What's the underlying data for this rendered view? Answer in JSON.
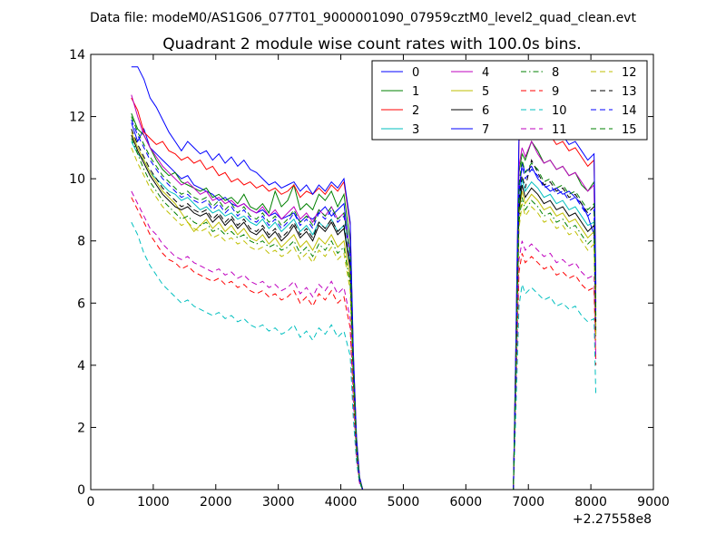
{
  "chart_data": {
    "type": "line",
    "suptitle": "Data file: modeM0/AS1G06_077T01_9000001090_07959cztM0_level2_quad_clean.evt",
    "title": "Quadrant 2 module wise count rates with 100.0s bins.",
    "xlabel": "",
    "ylabel": "",
    "x_offset_label": "+2.27558e8",
    "xlim": [
      0,
      9000
    ],
    "ylim": [
      0,
      14
    ],
    "xticks": [
      0,
      1000,
      2000,
      3000,
      4000,
      5000,
      6000,
      7000,
      8000,
      9000
    ],
    "yticks": [
      0,
      2,
      4,
      6,
      8,
      10,
      12,
      14
    ],
    "grid": false,
    "legend_position": "top-right",
    "legend_columns": 4,
    "x": [
      650,
      750,
      850,
      950,
      1050,
      1150,
      1250,
      1350,
      1450,
      1550,
      1650,
      1750,
      1850,
      1950,
      2050,
      2150,
      2250,
      2350,
      2450,
      2550,
      2650,
      2750,
      2850,
      2950,
      3050,
      3150,
      3250,
      3350,
      3450,
      3550,
      3650,
      3750,
      3850,
      3950,
      4050,
      4150,
      4200,
      4250,
      4300,
      4350,
      4400,
      4500,
      5000,
      5500,
      6000,
      6500,
      6700,
      6760,
      6800,
      6850,
      6900,
      6950,
      7050,
      7150,
      7250,
      7350,
      7450,
      7550,
      7650,
      7750,
      7850,
      7950,
      8050,
      8080
    ],
    "series": [
      {
        "name": "0",
        "color": "#0000ff",
        "dash": "solid",
        "values": [
          11.8,
          11.2,
          11.6,
          11.0,
          10.8,
          10.6,
          10.4,
          10.2,
          10.0,
          10.1,
          9.8,
          9.7,
          9.6,
          9.5,
          9.3,
          9.4,
          9.2,
          9.1,
          9.2,
          9.0,
          8.9,
          9.0,
          8.8,
          8.9,
          8.7,
          8.8,
          8.9,
          8.6,
          8.8,
          8.7,
          8.9,
          9.1,
          8.8,
          9.0,
          9.2,
          7.5,
          4.0,
          1.5,
          0.3,
          0.0,
          0.0,
          0.0,
          0.0,
          0.0,
          0.0,
          0.0,
          0.0,
          0.0,
          4.0,
          9.5,
          10.5,
          10.2,
          10.4,
          10.0,
          9.8,
          9.6,
          9.7,
          9.5,
          9.6,
          9.4,
          9.2,
          8.8,
          8.2,
          5.0
        ]
      },
      {
        "name": "1",
        "color": "#008000",
        "dash": "solid",
        "values": [
          12.1,
          11.6,
          11.4,
          11.0,
          10.6,
          10.3,
          10.1,
          10.2,
          9.9,
          9.8,
          9.7,
          9.6,
          9.7,
          9.4,
          9.5,
          9.3,
          9.4,
          9.2,
          9.5,
          9.1,
          9.0,
          9.2,
          8.9,
          9.6,
          9.1,
          9.3,
          9.8,
          9.0,
          9.2,
          9.0,
          9.5,
          9.3,
          9.6,
          9.1,
          9.5,
          8.0,
          4.2,
          1.6,
          0.3,
          0.0,
          0.0,
          0.0,
          0.0,
          0.0,
          0.0,
          0.0,
          0.0,
          0.0,
          4.2,
          10.2,
          10.8,
          10.6,
          11.2,
          10.9,
          10.5,
          10.6,
          10.3,
          10.4,
          10.1,
          10.2,
          9.8,
          9.6,
          9.9,
          6.0
        ]
      },
      {
        "name": "2",
        "color": "#ff0000",
        "dash": "solid",
        "values": [
          12.6,
          12.2,
          11.5,
          11.3,
          11.1,
          11.2,
          10.9,
          10.8,
          10.6,
          10.7,
          10.5,
          10.6,
          10.3,
          10.4,
          10.1,
          10.2,
          9.9,
          10.0,
          9.8,
          9.9,
          9.7,
          9.8,
          9.6,
          9.7,
          9.5,
          9.6,
          9.8,
          9.4,
          9.6,
          9.5,
          9.7,
          9.5,
          9.8,
          9.6,
          9.9,
          8.5,
          4.4,
          1.7,
          0.4,
          0.0,
          0.0,
          0.0,
          0.0,
          0.0,
          0.0,
          0.0,
          0.0,
          0.0,
          4.5,
          11.2,
          11.8,
          11.4,
          11.9,
          11.6,
          11.3,
          11.4,
          11.1,
          11.2,
          10.9,
          11.0,
          10.7,
          10.4,
          10.6,
          6.5
        ]
      },
      {
        "name": "3",
        "color": "#00bfbf",
        "dash": "solid",
        "values": [
          11.2,
          10.8,
          10.6,
          10.2,
          10.0,
          9.8,
          9.6,
          9.5,
          9.3,
          9.4,
          9.2,
          9.0,
          9.1,
          8.9,
          9.0,
          8.8,
          8.9,
          8.7,
          8.8,
          8.6,
          8.5,
          8.7,
          8.4,
          8.6,
          8.3,
          8.5,
          8.7,
          8.3,
          8.5,
          8.2,
          8.6,
          8.4,
          8.7,
          8.3,
          8.5,
          7.2,
          3.8,
          1.4,
          0.3,
          0.0,
          0.0,
          0.0,
          0.0,
          0.0,
          0.0,
          0.0,
          0.0,
          0.0,
          3.8,
          9.2,
          10.0,
          9.6,
          9.9,
          9.7,
          9.4,
          9.5,
          9.2,
          9.3,
          9.0,
          9.1,
          8.8,
          8.5,
          8.6,
          5.2
        ]
      },
      {
        "name": "4",
        "color": "#bf00bf",
        "dash": "solid",
        "values": [
          12.7,
          12.0,
          11.4,
          11.0,
          10.7,
          10.4,
          10.2,
          10.0,
          9.8,
          9.9,
          9.7,
          9.5,
          9.6,
          9.3,
          9.4,
          9.2,
          9.3,
          9.1,
          9.2,
          9.0,
          8.9,
          9.1,
          8.8,
          9.0,
          8.7,
          8.9,
          9.1,
          8.7,
          8.9,
          8.6,
          9.0,
          8.8,
          9.1,
          8.7,
          8.9,
          7.6,
          4.0,
          1.5,
          0.3,
          0.0,
          0.0,
          0.0,
          0.0,
          0.0,
          0.0,
          0.0,
          0.0,
          0.0,
          4.2,
          10.4,
          11.0,
          10.7,
          11.2,
          10.8,
          10.5,
          10.6,
          10.3,
          10.4,
          10.1,
          10.2,
          9.9,
          9.6,
          9.8,
          5.8
        ]
      },
      {
        "name": "5",
        "color": "#bfbf00",
        "dash": "solid",
        "values": [
          11.5,
          11.0,
          10.6,
          10.2,
          9.9,
          9.6,
          9.4,
          9.2,
          8.9,
          8.6,
          8.3,
          8.5,
          8.7,
          8.4,
          8.6,
          8.3,
          8.5,
          8.2,
          8.4,
          8.1,
          8.0,
          8.2,
          7.9,
          8.1,
          7.8,
          8.0,
          8.2,
          7.8,
          8.0,
          7.7,
          8.1,
          7.9,
          8.2,
          7.8,
          8.0,
          6.8,
          3.6,
          1.3,
          0.3,
          0.0,
          0.0,
          0.0,
          0.0,
          0.0,
          0.0,
          0.0,
          0.0,
          0.0,
          3.6,
          8.9,
          9.6,
          9.2,
          9.5,
          9.3,
          9.0,
          9.1,
          8.8,
          8.9,
          8.6,
          8.7,
          8.4,
          8.1,
          8.3,
          5.0
        ]
      },
      {
        "name": "6",
        "color": "#000000",
        "dash": "solid",
        "values": [
          11.4,
          10.9,
          10.5,
          10.1,
          9.8,
          9.5,
          9.3,
          9.1,
          9.0,
          9.1,
          8.9,
          8.8,
          8.9,
          8.6,
          8.8,
          8.5,
          8.7,
          8.4,
          8.6,
          8.3,
          8.2,
          8.4,
          8.1,
          8.3,
          8.0,
          8.2,
          8.5,
          8.1,
          8.3,
          8.0,
          8.5,
          8.3,
          8.6,
          8.2,
          8.4,
          7.1,
          3.7,
          1.4,
          0.3,
          0.0,
          0.0,
          0.0,
          0.0,
          0.0,
          0.0,
          0.0,
          0.0,
          0.0,
          3.7,
          9.0,
          9.8,
          9.4,
          9.7,
          9.5,
          9.2,
          9.3,
          9.0,
          9.1,
          8.8,
          8.9,
          8.6,
          8.3,
          8.5,
          5.1
        ]
      },
      {
        "name": "7",
        "color": "#0000ff",
        "dash": "solid",
        "values": [
          13.6,
          13.6,
          13.2,
          12.6,
          12.3,
          11.9,
          11.5,
          11.2,
          10.9,
          11.2,
          11.0,
          10.8,
          10.9,
          10.6,
          10.8,
          10.5,
          10.7,
          10.4,
          10.6,
          10.3,
          10.2,
          10.0,
          9.8,
          9.9,
          9.7,
          9.8,
          9.9,
          9.6,
          9.8,
          9.5,
          9.8,
          9.6,
          9.9,
          9.7,
          10.0,
          8.6,
          4.5,
          1.7,
          0.4,
          0.0,
          0.0,
          0.0,
          0.0,
          0.0,
          0.0,
          0.0,
          0.0,
          0.0,
          4.6,
          11.4,
          12.0,
          11.6,
          12.1,
          11.8,
          11.5,
          11.6,
          11.3,
          11.4,
          11.1,
          11.2,
          10.9,
          10.6,
          10.8,
          6.6
        ]
      },
      {
        "name": "8",
        "color": "#008000",
        "dash": "dashdot",
        "values": [
          11.3,
          10.8,
          10.3,
          9.9,
          9.6,
          9.3,
          9.1,
          8.9,
          8.7,
          8.8,
          8.6,
          8.5,
          8.6,
          8.3,
          8.4,
          8.2,
          8.3,
          8.1,
          8.2,
          8.0,
          7.9,
          8.0,
          7.8,
          7.9,
          7.7,
          7.8,
          8.0,
          7.6,
          7.8,
          7.5,
          7.9,
          7.7,
          8.0,
          7.6,
          7.8,
          6.6,
          3.5,
          1.3,
          0.3,
          0.0,
          0.0,
          0.0,
          0.0,
          0.0,
          0.0,
          0.0,
          0.0,
          0.0,
          3.5,
          8.6,
          9.4,
          9.0,
          9.3,
          9.1,
          8.8,
          8.9,
          8.6,
          8.7,
          8.4,
          8.5,
          8.2,
          7.9,
          8.1,
          4.9
        ]
      },
      {
        "name": "9",
        "color": "#ff0000",
        "dash": "dashed",
        "values": [
          9.4,
          9.0,
          8.6,
          8.2,
          7.9,
          7.6,
          7.4,
          7.3,
          7.1,
          7.2,
          7.0,
          6.9,
          6.8,
          6.7,
          6.8,
          6.6,
          6.7,
          6.5,
          6.6,
          6.4,
          6.3,
          6.4,
          6.2,
          6.3,
          6.1,
          6.2,
          6.4,
          6.0,
          6.2,
          5.9,
          6.3,
          6.1,
          6.4,
          6.0,
          6.2,
          5.2,
          2.8,
          1.0,
          0.2,
          0.0,
          0.0,
          0.0,
          0.0,
          0.0,
          0.0,
          0.0,
          0.0,
          0.0,
          2.9,
          7.0,
          7.6,
          7.3,
          7.5,
          7.3,
          7.1,
          7.2,
          6.9,
          7.0,
          6.8,
          6.9,
          6.6,
          6.4,
          6.5,
          4.0
        ]
      },
      {
        "name": "10",
        "color": "#00bfbf",
        "dash": "dashed",
        "values": [
          8.6,
          8.2,
          7.6,
          7.2,
          6.9,
          6.6,
          6.4,
          6.2,
          6.0,
          6.1,
          5.9,
          5.8,
          5.7,
          5.6,
          5.7,
          5.5,
          5.6,
          5.4,
          5.5,
          5.3,
          5.2,
          5.3,
          5.1,
          5.2,
          5.0,
          5.1,
          5.3,
          4.9,
          5.1,
          4.8,
          5.2,
          5.0,
          5.3,
          4.9,
          5.1,
          4.3,
          2.3,
          0.9,
          0.2,
          0.0,
          0.0,
          0.0,
          0.0,
          0.0,
          0.0,
          0.0,
          0.0,
          0.0,
          2.4,
          5.9,
          6.6,
          6.3,
          6.5,
          6.3,
          6.1,
          6.2,
          5.9,
          6.0,
          5.8,
          5.9,
          5.6,
          5.4,
          5.5,
          3.0
        ]
      },
      {
        "name": "11",
        "color": "#bf00bf",
        "dash": "dashed",
        "values": [
          9.6,
          9.2,
          8.8,
          8.4,
          8.2,
          7.9,
          7.7,
          7.5,
          7.4,
          7.5,
          7.3,
          7.2,
          7.1,
          7.0,
          7.1,
          6.9,
          7.0,
          6.8,
          6.9,
          6.7,
          6.6,
          6.7,
          6.5,
          6.6,
          6.4,
          6.5,
          6.7,
          6.3,
          6.5,
          6.2,
          6.6,
          6.4,
          6.7,
          6.3,
          6.5,
          5.5,
          2.9,
          1.1,
          0.2,
          0.0,
          0.0,
          0.0,
          0.0,
          0.0,
          0.0,
          0.0,
          0.0,
          0.0,
          3.0,
          7.4,
          8.0,
          7.7,
          7.9,
          7.7,
          7.5,
          7.6,
          7.3,
          7.4,
          7.2,
          7.3,
          7.0,
          6.8,
          6.9,
          4.2
        ]
      },
      {
        "name": "12",
        "color": "#bfbf00",
        "dash": "dashed",
        "values": [
          11.0,
          10.5,
          10.1,
          9.7,
          9.4,
          9.1,
          8.9,
          8.7,
          8.5,
          8.6,
          8.4,
          8.3,
          8.4,
          8.1,
          8.2,
          8.0,
          8.1,
          7.9,
          8.0,
          7.8,
          7.7,
          7.8,
          7.6,
          7.7,
          7.5,
          7.6,
          7.8,
          7.4,
          7.6,
          7.3,
          7.7,
          7.5,
          7.8,
          7.4,
          7.6,
          6.4,
          3.4,
          1.3,
          0.3,
          0.0,
          0.0,
          0.0,
          0.0,
          0.0,
          0.0,
          0.0,
          0.0,
          0.0,
          3.4,
          8.4,
          9.2,
          8.8,
          9.1,
          8.9,
          8.6,
          8.7,
          8.4,
          8.5,
          8.2,
          8.3,
          8.0,
          7.7,
          7.9,
          4.8
        ]
      },
      {
        "name": "13",
        "color": "#000000",
        "dash": "dashed",
        "values": [
          11.6,
          11.1,
          10.7,
          10.3,
          10.0,
          9.7,
          9.5,
          9.3,
          9.1,
          9.2,
          9.0,
          8.9,
          9.0,
          8.7,
          8.9,
          8.6,
          8.8,
          8.5,
          8.7,
          8.4,
          8.3,
          8.5,
          8.2,
          8.4,
          8.1,
          8.3,
          8.6,
          8.2,
          8.4,
          8.1,
          8.6,
          8.4,
          8.7,
          8.3,
          8.5,
          7.2,
          3.8,
          1.4,
          0.3,
          0.0,
          0.0,
          0.0,
          0.0,
          0.0,
          0.0,
          0.0,
          0.0,
          0.0,
          3.8,
          9.3,
          10.1,
          9.7,
          10.6,
          10.2,
          9.8,
          9.9,
          9.6,
          9.7,
          9.4,
          9.5,
          9.2,
          8.9,
          9.1,
          5.4
        ]
      },
      {
        "name": "14",
        "color": "#0000ff",
        "dash": "dashed",
        "values": [
          11.9,
          11.4,
          11.0,
          10.6,
          10.3,
          10.0,
          9.8,
          9.6,
          9.4,
          9.5,
          9.3,
          9.2,
          9.3,
          9.0,
          9.2,
          8.9,
          9.1,
          8.8,
          9.0,
          8.7,
          8.6,
          8.8,
          8.5,
          8.7,
          8.4,
          8.6,
          8.9,
          8.5,
          8.7,
          8.4,
          8.9,
          8.7,
          9.0,
          8.6,
          8.8,
          7.5,
          3.9,
          1.5,
          0.3,
          0.0,
          0.0,
          0.0,
          0.0,
          0.0,
          0.0,
          0.0,
          0.0,
          0.0,
          3.9,
          9.6,
          10.4,
          10.0,
          10.3,
          10.1,
          9.7,
          9.8,
          9.5,
          9.6,
          9.3,
          9.4,
          9.1,
          8.8,
          9.0,
          5.5
        ]
      },
      {
        "name": "15",
        "color": "#008000",
        "dash": "dashed",
        "values": [
          12.0,
          11.5,
          11.1,
          10.7,
          10.4,
          10.1,
          9.9,
          9.7,
          9.5,
          9.6,
          9.4,
          9.3,
          9.4,
          9.1,
          9.3,
          9.0,
          9.2,
          8.9,
          9.1,
          8.8,
          8.7,
          8.9,
          8.6,
          8.8,
          8.5,
          8.7,
          9.0,
          8.6,
          8.8,
          8.5,
          9.0,
          8.8,
          9.1,
          8.7,
          8.9,
          7.6,
          4.0,
          1.5,
          0.3,
          0.0,
          0.0,
          0.0,
          0.0,
          0.0,
          0.0,
          0.0,
          0.0,
          0.0,
          4.0,
          9.8,
          10.6,
          10.2,
          10.5,
          10.3,
          9.9,
          10.0,
          9.7,
          9.8,
          9.5,
          9.6,
          9.3,
          9.0,
          9.2,
          5.6
        ]
      }
    ]
  }
}
